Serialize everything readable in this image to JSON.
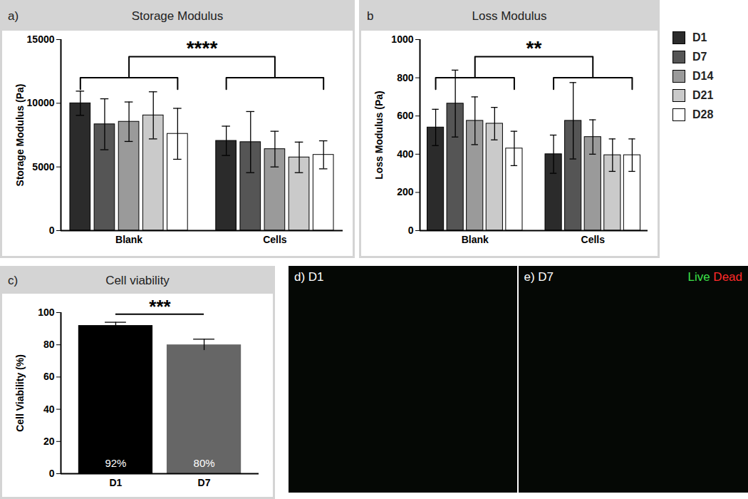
{
  "chart_data": [
    {
      "type": "bar",
      "panel": "a)",
      "title": "Storage Modulus",
      "ylabel": "Storage Modulus (Pa)",
      "categories": [
        "Blank",
        "Cells"
      ],
      "series": [
        {
          "name": "D1",
          "color": "#2b2b2b",
          "values": [
            10000,
            7050
          ],
          "errors": [
            950,
            1150
          ]
        },
        {
          "name": "D7",
          "color": "#555555",
          "values": [
            8350,
            6950
          ],
          "errors": [
            2000,
            2400
          ]
        },
        {
          "name": "D14",
          "color": "#9a9a9a",
          "values": [
            8550,
            6400
          ],
          "errors": [
            1550,
            1400
          ]
        },
        {
          "name": "D21",
          "color": "#cacaca",
          "values": [
            9050,
            5750
          ],
          "errors": [
            1850,
            1200
          ]
        },
        {
          "name": "D28",
          "color": "#ffffff",
          "values": [
            7600,
            5950
          ],
          "errors": [
            2000,
            1100
          ]
        }
      ],
      "ylim": [
        0,
        15000
      ],
      "yticks": [
        0,
        5000,
        10000,
        15000
      ],
      "annotations": [
        "****"
      ]
    },
    {
      "type": "bar",
      "panel": "b",
      "title": "Loss Modulus",
      "ylabel": "Loss Modulus (Pa)",
      "categories": [
        "Blank",
        "Cells"
      ],
      "series": [
        {
          "name": "D1",
          "color": "#2b2b2b",
          "values": [
            540,
            400
          ],
          "errors": [
            95,
            100
          ]
        },
        {
          "name": "D7",
          "color": "#555555",
          "values": [
            665,
            575
          ],
          "errors": [
            175,
            200
          ]
        },
        {
          "name": "D14",
          "color": "#9a9a9a",
          "values": [
            575,
            490
          ],
          "errors": [
            125,
            90
          ]
        },
        {
          "name": "D21",
          "color": "#cacaca",
          "values": [
            560,
            395
          ],
          "errors": [
            85,
            85
          ]
        },
        {
          "name": "D28",
          "color": "#ffffff",
          "values": [
            430,
            395
          ],
          "errors": [
            90,
            85
          ]
        }
      ],
      "ylim": [
        0,
        1000
      ],
      "yticks": [
        0,
        200,
        400,
        600,
        800,
        1000
      ],
      "legend": "right",
      "annotations": [
        "**"
      ]
    },
    {
      "type": "bar",
      "panel": "c)",
      "title": "Cell viability",
      "ylabel": "Cell Viability (%)",
      "categories": [
        "D1",
        "D7"
      ],
      "values": [
        92,
        80
      ],
      "errors": [
        2,
        3.5
      ],
      "value_labels": [
        "92%",
        "80%"
      ],
      "data_labels": true,
      "colors": [
        "#000000",
        "#666666"
      ],
      "ylim": [
        0,
        100
      ],
      "yticks": [
        0,
        20,
        40,
        60,
        80,
        100
      ],
      "annotations": [
        "***"
      ]
    }
  ],
  "images": [
    {
      "label": "d) D1"
    },
    {
      "label": "e) D7",
      "legend": [
        {
          "name": "Live",
          "color": "#3ce04a"
        },
        {
          "name": "Dead",
          "color": "#ff2a2a"
        }
      ]
    }
  ]
}
